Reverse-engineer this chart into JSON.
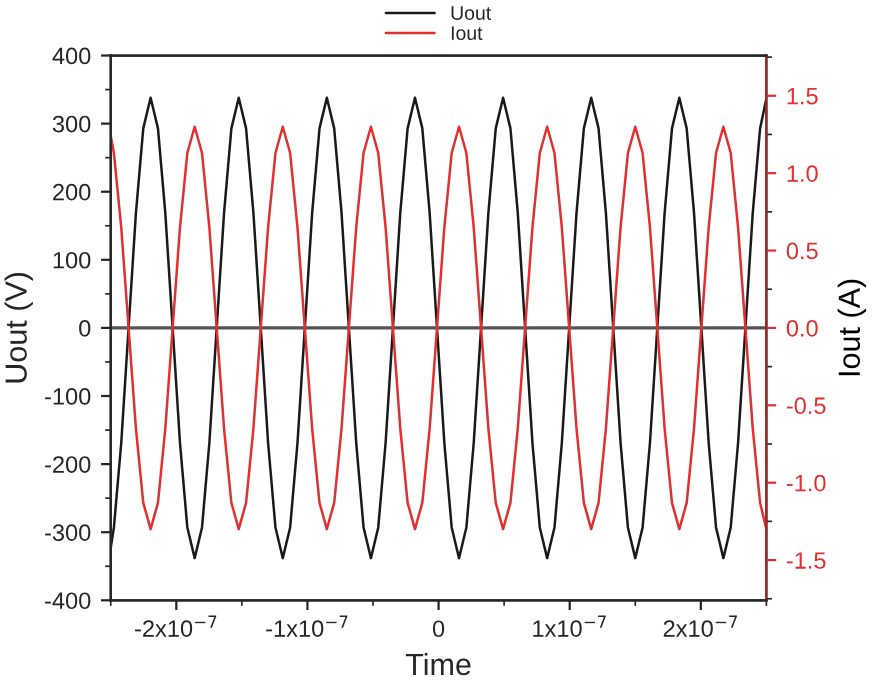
{
  "chart_data": {
    "type": "line",
    "xlabel": "Time",
    "ylabel": "Uout (V)",
    "y2label": "Iout (A)",
    "x": [
      -2.5e-07,
      -2.476e-07,
      -2.42e-07,
      -2.364e-07,
      -2.308e-07,
      -2.252e-07,
      -2.196e-07,
      -2.14e-07,
      -2.084e-07,
      -2.028e-07,
      -1.972e-07,
      -1.916e-07,
      -1.86e-07,
      -1.804e-07,
      -1.748e-07,
      -1.692e-07,
      -1.636e-07,
      -1.58e-07,
      -1.524e-07,
      -1.468e-07,
      -1.412e-07,
      -1.356e-07,
      -1.3e-07,
      -1.244e-07,
      -1.188e-07,
      -1.132e-07,
      -1.076e-07,
      -1.02e-07,
      -9.64e-08,
      -9.08e-08,
      -8.52e-08,
      -7.96e-08,
      -7.4e-08,
      -6.84e-08,
      -6.28e-08,
      -5.72e-08,
      -5.16e-08,
      -4.6e-08,
      -4.04e-08,
      -3.48e-08,
      -2.92e-08,
      -2.36e-08,
      -1.8e-08,
      -1.24e-08,
      -6.8e-09,
      -1.2e-09,
      4.4e-09,
      1e-08,
      1.56e-08,
      2.12e-08,
      2.68e-08,
      3.24e-08,
      3.8e-08,
      4.36e-08,
      4.92e-08,
      5.48e-08,
      6.04e-08,
      6.6e-08,
      7.16e-08,
      7.72e-08,
      8.28e-08,
      8.84e-08,
      9.4e-08,
      9.96e-08,
      1.052e-07,
      1.108e-07,
      1.164e-07,
      1.22e-07,
      1.276e-07,
      1.332e-07,
      1.388e-07,
      1.444e-07,
      1.5e-07,
      1.556e-07,
      1.612e-07,
      1.668e-07,
      1.724e-07,
      1.78e-07,
      1.836e-07,
      1.892e-07,
      1.948e-07,
      2.004e-07,
      2.06e-07,
      2.116e-07,
      2.172e-07,
      2.228e-07,
      2.284e-07,
      2.34e-07,
      2.396e-07,
      2.452e-07,
      2.5e-07
    ],
    "series": [
      {
        "name": "Uout",
        "color": "#1a1a1a",
        "values": [
          -323,
          -293,
          -169,
          0,
          169,
          293,
          338,
          293,
          169,
          0,
          -169,
          -293,
          -338,
          -293,
          -169,
          0,
          169,
          293,
          338,
          293,
          169,
          0,
          -169,
          -293,
          -338,
          -293,
          -169,
          0,
          169,
          293,
          338,
          293,
          169,
          0,
          -169,
          -293,
          -338,
          -293,
          -169,
          0,
          169,
          293,
          338,
          293,
          169,
          0,
          -169,
          -293,
          -338,
          -293,
          -169,
          0,
          169,
          293,
          338,
          293,
          169,
          0,
          -169,
          -293,
          -338,
          -293,
          -169,
          0,
          169,
          293,
          338,
          293,
          169,
          0,
          -169,
          -293,
          -338,
          -293,
          -169,
          0,
          169,
          293,
          338,
          293,
          169,
          0,
          -169,
          -293,
          -338,
          -293,
          -169,
          0,
          169,
          293,
          337
        ]
      },
      {
        "name": "Iout",
        "color": "#e0302f",
        "axis": "y2",
        "values": [
          1.24,
          1.13,
          0.65,
          0,
          -0.65,
          -1.13,
          -1.3,
          -1.13,
          -0.65,
          0,
          0.65,
          1.13,
          1.3,
          1.13,
          0.65,
          0,
          -0.65,
          -1.13,
          -1.3,
          -1.13,
          -0.65,
          0,
          0.65,
          1.13,
          1.3,
          1.13,
          0.65,
          0,
          -0.65,
          -1.13,
          -1.3,
          -1.13,
          -0.65,
          0,
          0.65,
          1.13,
          1.3,
          1.13,
          0.65,
          0,
          -0.65,
          -1.13,
          -1.3,
          -1.13,
          -0.65,
          0,
          0.65,
          1.13,
          1.3,
          1.13,
          0.65,
          0,
          -0.65,
          -1.13,
          -1.3,
          -1.13,
          -0.65,
          0,
          0.65,
          1.13,
          1.3,
          1.13,
          0.65,
          0,
          -0.65,
          -1.13,
          -1.3,
          -1.13,
          -0.65,
          0,
          0.65,
          1.13,
          1.3,
          1.13,
          0.65,
          0,
          -0.65,
          -1.13,
          -1.3,
          -1.13,
          -0.65,
          0,
          0.65,
          1.13,
          1.3,
          1.13,
          0.65,
          0,
          -0.65,
          -1.13,
          -1.3
        ]
      }
    ],
    "xlim": [
      -2.5e-07,
      2.5e-07
    ],
    "xticks": [
      {
        "value": -2e-07,
        "label": "-2x10$^{−7}$"
      },
      {
        "value": -1e-07,
        "label": "-1x10$^{−7}$"
      },
      0,
      {
        "value": 1e-07,
        "label": "1x10$^{−7}$"
      },
      {
        "value": 2e-07,
        "label": "2x10$^{−7}$"
      }
    ],
    "ylim": [
      -400,
      400
    ],
    "yticks": [
      -400,
      -300,
      -200,
      -100,
      0,
      100,
      200,
      300,
      400
    ],
    "y2lim": [
      -1.76,
      1.76
    ],
    "y2ticks": [
      -1.5,
      {
        "value": -1,
        "label": "-1.0"
      },
      -0.5,
      {
        "value": 0,
        "label": "0.0"
      },
      0.5,
      {
        "value": 1,
        "label": "1.0"
      },
      1.5
    ],
    "ref_lines": [
      {
        "axis": "y",
        "value": 0,
        "color": "#555555"
      }
    ],
    "legend": "top",
    "grid": false
  }
}
